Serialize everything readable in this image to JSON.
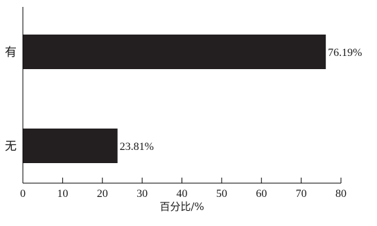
{
  "chart_data": {
    "type": "bar",
    "orientation": "horizontal",
    "categories": [
      "有",
      "无"
    ],
    "values": [
      76.19,
      23.81
    ],
    "data_labels": [
      "76.19%",
      "23.81%"
    ],
    "xlabel": "百分比/%",
    "ylabel": "",
    "xlim": [
      0,
      80
    ],
    "xticks": [
      "0",
      "10",
      "20",
      "30",
      "40",
      "50",
      "60",
      "70",
      "80"
    ],
    "grid": false,
    "bar_color": "#231f20"
  }
}
